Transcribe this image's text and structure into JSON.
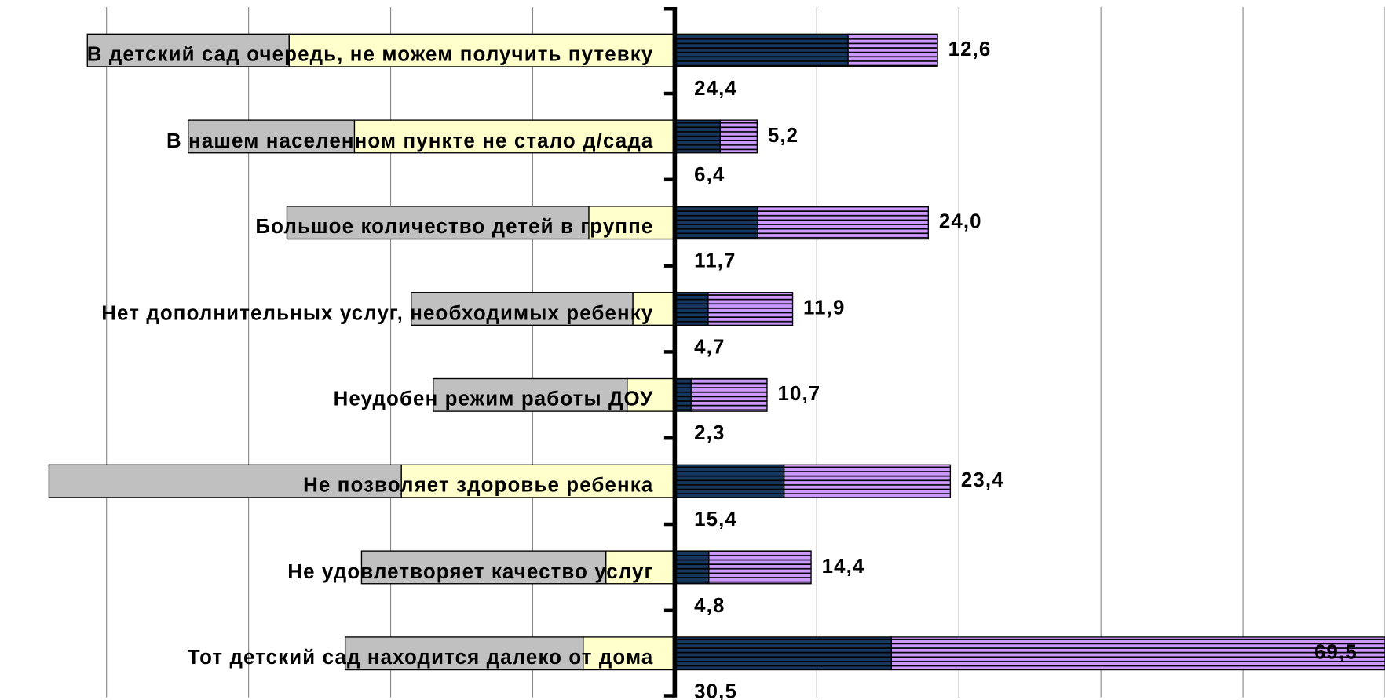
{
  "chart_data": {
    "type": "bar",
    "orientation": "horizontal",
    "stacked": true,
    "categories": [
      "В детский сад очередь, не можем получить путевку",
      "В нашем населенном пункте не стало д/сада",
      "Большое количество детей в группе",
      "Нет дополнительных услуг, необходимых ребенку",
      "Неудобен режим работы ДОУ",
      "Не позволяет здоровье ребенка",
      "Не удовлетворяет качество услуг",
      "Тот детский сад находится далеко от дома"
    ],
    "series": [
      {
        "color": "#ffffcc",
        "values": [
          -54.3,
          -45.1,
          -12.1,
          -5.9,
          -6.7,
          -38.5,
          -9.7,
          -12.9
        ]
      },
      {
        "color": "#c0c0c0",
        "values": [
          -28.4,
          -23.4,
          -42.5,
          -31.2,
          -27.3,
          -49.6,
          -34.4,
          -33.5
        ]
      },
      {
        "color": "#17375e",
        "striped": true,
        "values": [
          24.4,
          6.4,
          11.7,
          4.7,
          2.3,
          15.4,
          4.8,
          30.5
        ],
        "value_labels": [
          "24,4",
          "6,4",
          "11,7",
          "4,7",
          "2,3",
          "15,4",
          "4,8",
          "30,5"
        ]
      },
      {
        "color": "#cc99ff",
        "striped": true,
        "values": [
          12.6,
          5.2,
          24.0,
          11.9,
          10.7,
          23.4,
          14.4,
          69.5
        ],
        "value_labels": [
          "12,6",
          "5,2",
          "24,0",
          "11,9",
          "10,7",
          "23,4",
          "14,4",
          "69,5"
        ]
      }
    ],
    "xlim": [
      -95,
      100
    ],
    "xticks": [
      -80,
      -60,
      -40,
      -20,
      0,
      20,
      40,
      60,
      80,
      100
    ],
    "grid": true
  }
}
